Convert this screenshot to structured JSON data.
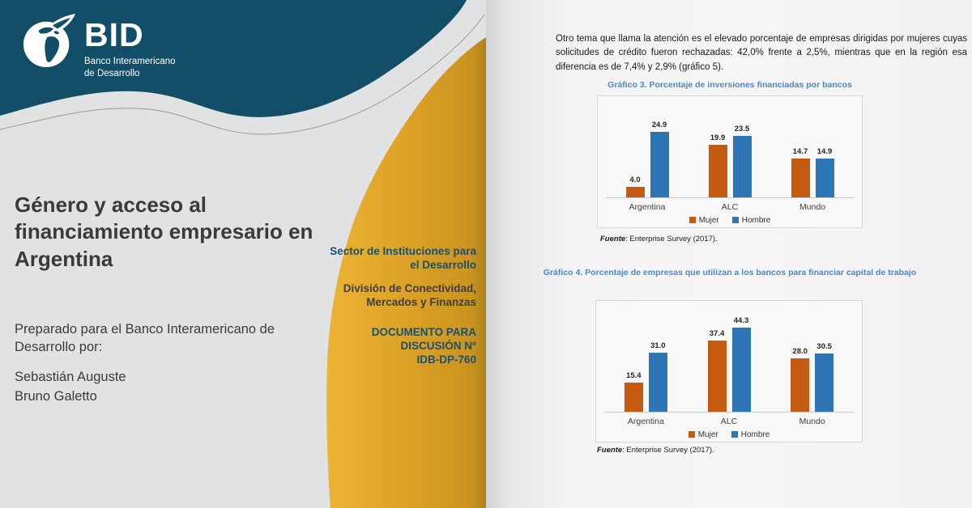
{
  "colors": {
    "brand_teal": "#134E68",
    "cover_gold": "#D9A026",
    "chart_title_blue": "#4B88C7",
    "mujer_orange": "#C55A11",
    "hombre_blue": "#2E75B6"
  },
  "cover": {
    "logo": {
      "brand": "BID",
      "org_line1": "Banco Interamericano",
      "org_line2": "de Desarrollo"
    },
    "title": "Género y acceso al financiamiento empresario en Argentina",
    "prepared": "Preparado para el Banco Interamericano de Desarrollo por:",
    "authors": [
      "Sebastián Auguste",
      "Bruno Galetto"
    ],
    "sector_lines": [
      "Sector de Instituciones para",
      "el Desarrollo"
    ],
    "division_lines": [
      "División de Conectividad,",
      "Mercados y Finanzas"
    ],
    "document_lines": [
      "DOCUMENTO PARA",
      "DISCUSIÓN Nº",
      "IDB-DP-760"
    ]
  },
  "page": {
    "paragraph": "Otro tema que llama la atención es el elevado porcentaje de empresas dirigidas por mujeres cuyas solicitudes de crédito fueron rechazadas: 42,0% frente a 2,5%, mientras que en la región esa diferencia es de 7,4% y 2,9% (gráfico 5).",
    "source_label": "Fuente",
    "source_rest": ": Enterprise Survey (2017)."
  },
  "chart_data": [
    {
      "type": "bar",
      "title": "Gráfico 3. Porcentaje de inversiones financiadas por bancos",
      "categories": [
        "Argentina",
        "ALC",
        "Mundo"
      ],
      "series": [
        {
          "name": "Mujer",
          "color": "#C55A11",
          "values": [
            4.0,
            19.9,
            14.7
          ],
          "labels": [
            "4.0",
            "19.9",
            "14.7"
          ]
        },
        {
          "name": "Hombre",
          "color": "#2E75B6",
          "values": [
            24.9,
            23.5,
            14.9
          ],
          "labels": [
            "24.9",
            "23.5",
            "14.9"
          ]
        }
      ],
      "ylim": [
        0,
        36
      ],
      "grid": false,
      "legend_position": "bottom",
      "source": "Fuente: Enterprise Survey (2017)."
    },
    {
      "type": "bar",
      "title": "Gráfico 4. Porcentaje de empresas que utilizan a los bancos para financiar capital de trabajo",
      "categories": [
        "Argentina",
        "ALC",
        "Mundo"
      ],
      "series": [
        {
          "name": "Mujer",
          "color": "#C55A11",
          "values": [
            15.4,
            37.4,
            28.0
          ],
          "labels": [
            "15.4",
            "37.4",
            "28.0"
          ]
        },
        {
          "name": "Hombre",
          "color": "#2E75B6",
          "values": [
            31.0,
            44.3,
            30.5
          ],
          "labels": [
            "31.0",
            "44.3",
            "30.5"
          ]
        }
      ],
      "ylim": [
        0,
        55
      ],
      "grid": false,
      "legend_position": "bottom",
      "source": "Fuente: Enterprise Survey (2017)."
    }
  ]
}
